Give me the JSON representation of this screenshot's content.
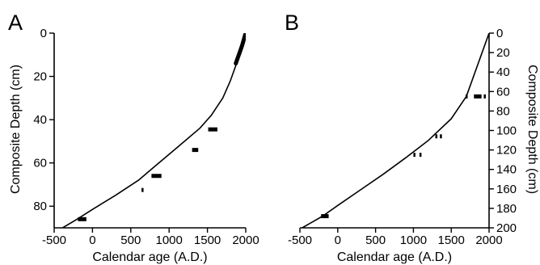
{
  "chart_data": [
    {
      "type": "line",
      "panel_label": "A",
      "xlabel": "Calendar age (A.D.)",
      "ylabel": "Composite Depth (cm)",
      "ylabel_side": "left",
      "xlim": [
        -500,
        2000
      ],
      "ylim": [
        0,
        90
      ],
      "y_inverted": true,
      "xticks": [
        -500,
        0,
        500,
        1000,
        1500,
        2000
      ],
      "yticks": [
        0,
        20,
        40,
        60,
        80
      ],
      "grid": false,
      "age_model_curve": {
        "x": [
          -390,
          -200,
          0,
          300,
          600,
          800,
          1000,
          1200,
          1400,
          1550,
          1700,
          1800,
          1870,
          1920,
          1960,
          1985,
          2000
        ],
        "y": [
          90,
          86,
          81.5,
          75,
          68,
          62,
          56,
          50,
          44,
          38,
          30,
          22,
          15,
          9,
          4,
          1,
          0
        ]
      },
      "thick_segment": {
        "x": [
          1870,
          1900,
          1930,
          1955,
          1975,
          1990,
          2000
        ],
        "y": [
          14,
          11,
          8,
          5.5,
          3,
          1,
          0
        ]
      },
      "dated_samples": [
        {
          "x_range": [
            -190,
            -80
          ],
          "y": 86
        },
        {
          "x_range": [
            640,
            660
          ],
          "y": 72.5
        },
        {
          "x_range": [
            770,
            900
          ],
          "y": 66
        },
        {
          "x_range": [
            1300,
            1380
          ],
          "y": 54
        },
        {
          "x_range": [
            1510,
            1630
          ],
          "y": 44.5
        }
      ]
    },
    {
      "type": "line",
      "panel_label": "B",
      "xlabel": "Calendar age (A.D.)",
      "ylabel": "Composite Depth (cm)",
      "ylabel_side": "right",
      "xlim": [
        -500,
        2000
      ],
      "ylim": [
        0,
        200
      ],
      "y_inverted": true,
      "xticks": [
        -500,
        0,
        500,
        1000,
        1500,
        2000
      ],
      "yticks": [
        0,
        20,
        40,
        60,
        80,
        100,
        120,
        140,
        160,
        180,
        200
      ],
      "grid": false,
      "age_model_curve": {
        "x": [
          -470,
          -200,
          0,
          300,
          600,
          900,
          1200,
          1500,
          1700,
          2000
        ],
        "y": [
          200,
          188,
          177,
          161,
          145,
          128,
          110,
          88,
          65,
          0
        ]
      },
      "dated_samples": [
        {
          "x_range": [
            -220,
            -120
          ],
          "y": 188
        },
        {
          "x_range": [
            1000,
            1020
          ],
          "y": 125
        },
        {
          "x_range": [
            1080,
            1100
          ],
          "y": 125
        },
        {
          "x_range": [
            1290,
            1310
          ],
          "y": 106
        },
        {
          "x_range": [
            1350,
            1370
          ],
          "y": 106
        },
        {
          "x_range": [
            1690,
            1710
          ],
          "y": 65
        },
        {
          "x_range": [
            1800,
            1900
          ],
          "y": 65
        },
        {
          "x_range": [
            1930,
            1950
          ],
          "y": 65
        }
      ]
    }
  ]
}
